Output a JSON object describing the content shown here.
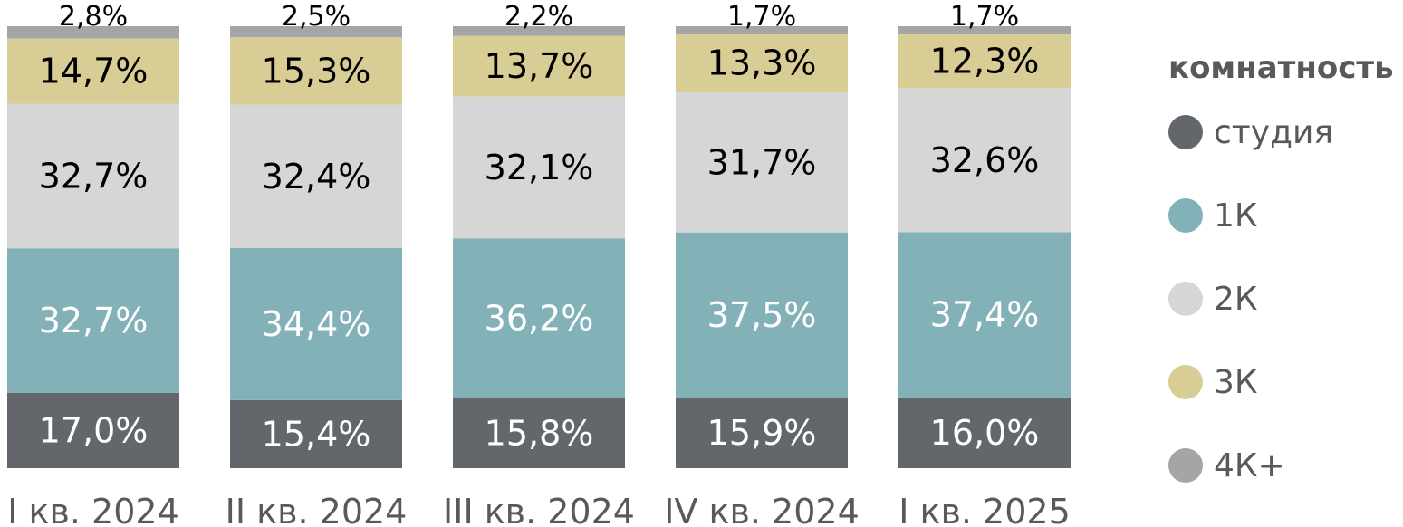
{
  "chart_data": {
    "type": "bar",
    "stacked": true,
    "normalized": true,
    "categories": [
      "I кв. 2024",
      "II кв. 2024",
      "III кв. 2024",
      "IV кв. 2024",
      "I кв. 2025"
    ],
    "series": [
      {
        "name": "студия",
        "color": "#63676b",
        "label_color": "#ffffff",
        "values": [
          17.0,
          15.4,
          15.8,
          15.9,
          16.0
        ],
        "labels": [
          "17,0%",
          "15,4%",
          "15,8%",
          "15,9%",
          "16,0%"
        ]
      },
      {
        "name": "1К",
        "color": "#82b2b8",
        "label_color": "#ffffff",
        "values": [
          32.7,
          34.4,
          36.2,
          37.5,
          37.4
        ],
        "labels": [
          "32,7%",
          "34,4%",
          "36,2%",
          "37,5%",
          "37,4%"
        ]
      },
      {
        "name": "2К",
        "color": "#d6d6d6",
        "label_color": "#000000",
        "values": [
          32.7,
          32.4,
          32.1,
          31.7,
          32.6
        ],
        "labels": [
          "32,7%",
          "32,4%",
          "32,1%",
          "31,7%",
          "32,6%"
        ]
      },
      {
        "name": "3К",
        "color": "#d8cd95",
        "label_color": "#000000",
        "values": [
          14.7,
          15.3,
          13.7,
          13.3,
          12.3
        ],
        "labels": [
          "14,7%",
          "15,3%",
          "13,7%",
          "13,3%",
          "12,3%"
        ]
      },
      {
        "name": "4К+",
        "color": "#a5a5a5",
        "label_color": "#000000",
        "values": [
          2.8,
          2.5,
          2.2,
          1.7,
          1.7
        ],
        "labels": [
          "2,8%",
          "2,5%",
          "2,2%",
          "1,7%",
          "1,7%"
        ]
      }
    ],
    "legend_title": "комнатность",
    "legend_position": "right",
    "grid": false,
    "ylim": [
      0,
      100
    ]
  }
}
